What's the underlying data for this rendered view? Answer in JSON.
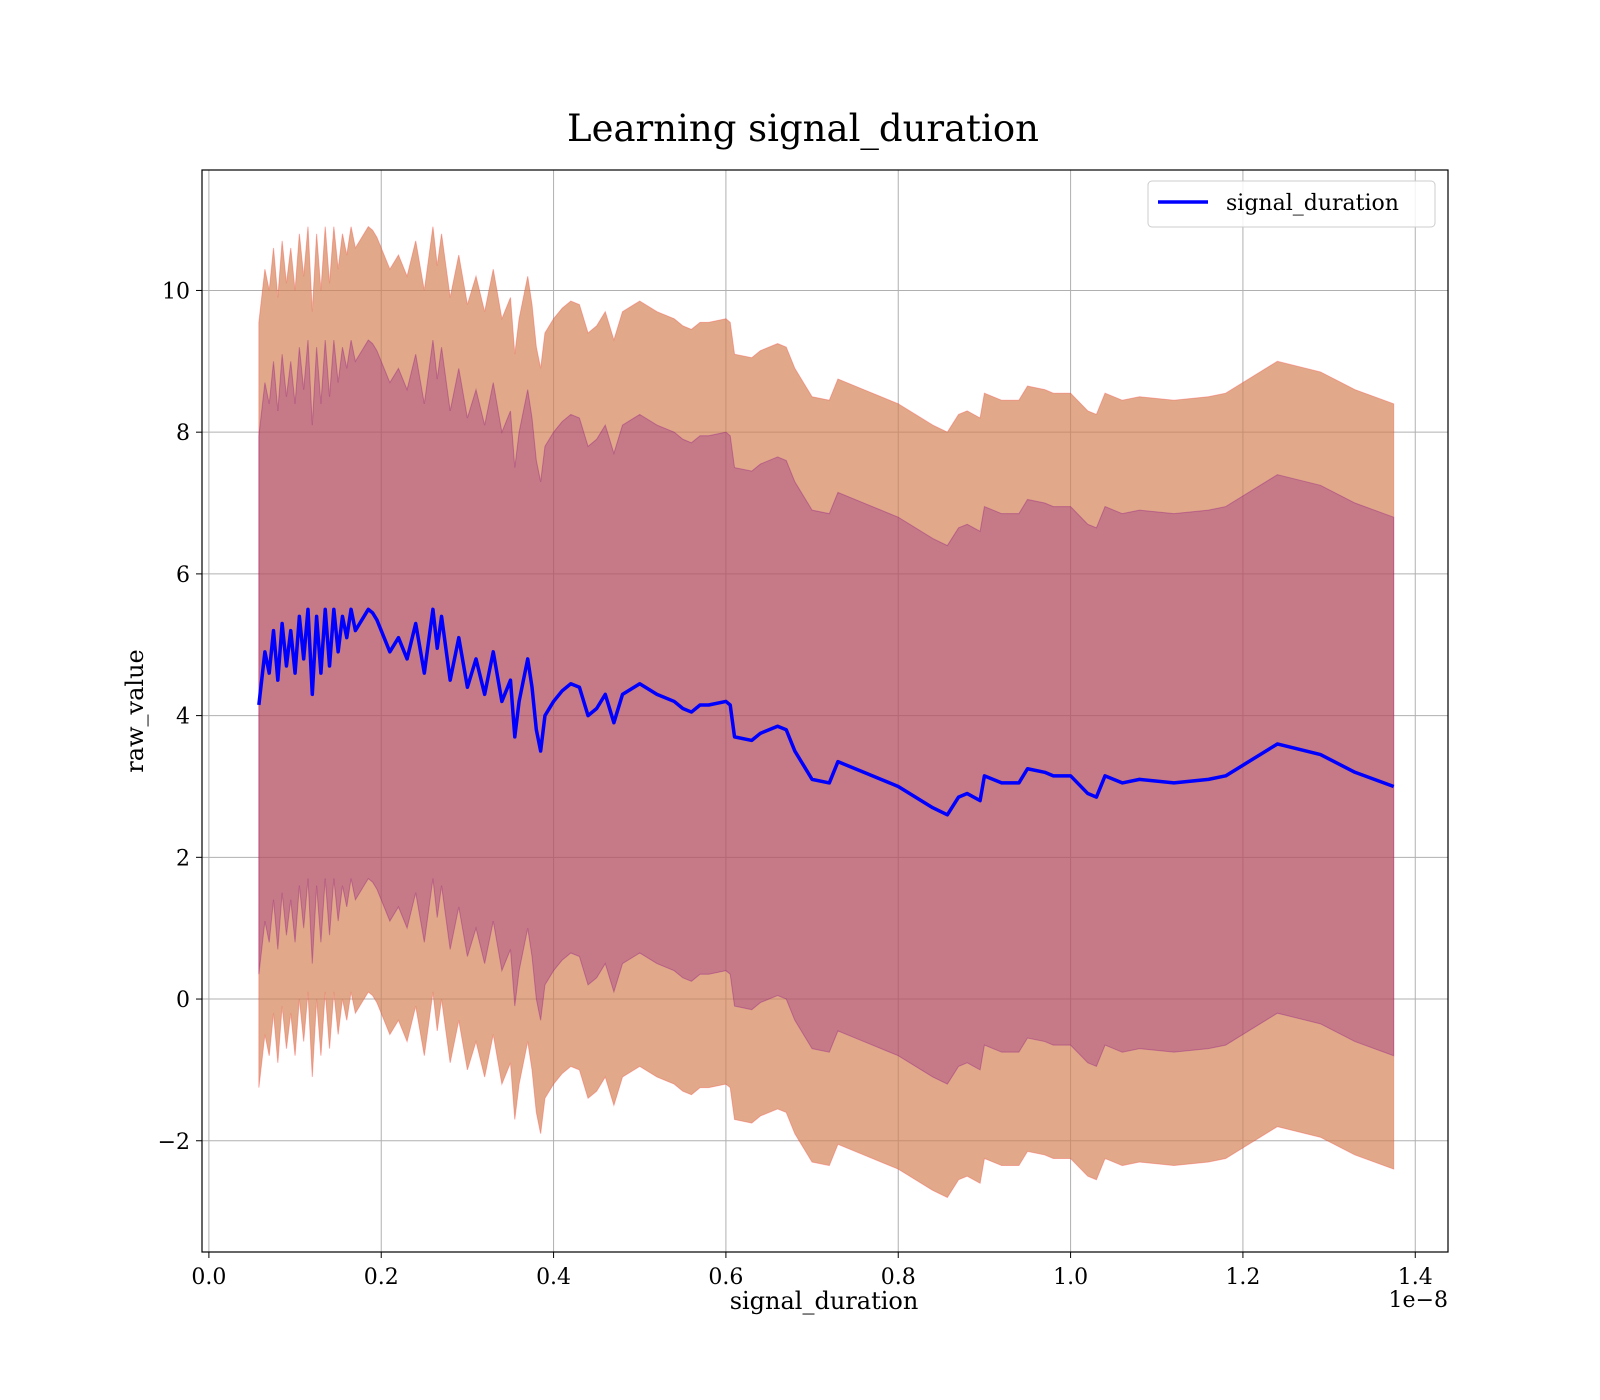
{
  "chart_data": {
    "type": "area",
    "title": "Learning signal_duration",
    "xlabel": "signal_duration",
    "ylabel": "raw_value",
    "x_offset_label": "1e−8",
    "xlim": [
      -0.008,
      1.438
    ],
    "ylim": [
      -3.57,
      11.7
    ],
    "x_ticks": [
      0.0,
      0.2,
      0.4,
      0.6,
      0.8,
      1.0,
      1.2,
      1.4
    ],
    "x_tick_labels": [
      "0.0",
      "0.2",
      "0.4",
      "0.6",
      "0.8",
      "1.0",
      "1.2",
      "1.4"
    ],
    "y_ticks": [
      -2,
      0,
      2,
      4,
      6,
      8,
      10
    ],
    "y_tick_labels": [
      "−2",
      "0",
      "2",
      "4",
      "6",
      "8",
      "10"
    ],
    "grid": true,
    "legend": {
      "position": "top-right"
    },
    "colors": {
      "mean_line": "#0000ff",
      "outer_band": "#ff0000",
      "inner_band": "#800080",
      "grid": "#b0b0b0"
    },
    "series": [
      {
        "name": "signal_duration",
        "x": [
          0.058,
          0.065,
          0.07,
          0.075,
          0.08,
          0.085,
          0.09,
          0.095,
          0.1,
          0.105,
          0.11,
          0.115,
          0.12,
          0.125,
          0.13,
          0.135,
          0.14,
          0.145,
          0.15,
          0.155,
          0.16,
          0.165,
          0.17,
          0.175,
          0.18,
          0.185,
          0.19,
          0.195,
          0.2,
          0.21,
          0.22,
          0.23,
          0.24,
          0.25,
          0.26,
          0.265,
          0.27,
          0.28,
          0.29,
          0.3,
          0.31,
          0.32,
          0.33,
          0.34,
          0.35,
          0.355,
          0.36,
          0.37,
          0.375,
          0.38,
          0.385,
          0.39,
          0.4,
          0.41,
          0.42,
          0.43,
          0.44,
          0.45,
          0.46,
          0.47,
          0.48,
          0.5,
          0.52,
          0.54,
          0.55,
          0.56,
          0.57,
          0.58,
          0.6,
          0.605,
          0.61,
          0.63,
          0.64,
          0.66,
          0.67,
          0.68,
          0.69,
          0.7,
          0.72,
          0.73,
          0.76,
          0.78,
          0.8,
          0.82,
          0.84,
          0.857,
          0.87,
          0.88,
          0.895,
          0.9,
          0.92,
          0.94,
          0.95,
          0.97,
          0.98,
          1.0,
          1.02,
          1.03,
          1.04,
          1.06,
          1.08,
          1.12,
          1.16,
          1.18,
          1.2,
          1.24,
          1.29,
          1.33,
          1.375
        ],
        "values": [
          4.15,
          4.9,
          4.6,
          5.2,
          4.5,
          5.3,
          4.7,
          5.2,
          4.6,
          5.4,
          4.8,
          5.5,
          4.3,
          5.4,
          4.6,
          5.5,
          4.7,
          5.5,
          4.9,
          5.4,
          5.1,
          5.5,
          5.2,
          5.3,
          5.4,
          5.5,
          5.45,
          5.35,
          5.2,
          4.9,
          5.1,
          4.8,
          5.3,
          4.6,
          5.5,
          4.95,
          5.4,
          4.5,
          5.1,
          4.4,
          4.8,
          4.3,
          4.9,
          4.2,
          4.5,
          3.7,
          4.2,
          4.8,
          4.4,
          3.8,
          3.5,
          4.0,
          4.2,
          4.35,
          4.45,
          4.4,
          4.0,
          4.1,
          4.3,
          3.9,
          4.3,
          4.45,
          4.3,
          4.2,
          4.1,
          4.05,
          4.15,
          4.15,
          4.2,
          4.15,
          3.7,
          3.65,
          3.75,
          3.85,
          3.8,
          3.5,
          3.3,
          3.1,
          3.05,
          3.35,
          3.2,
          3.1,
          3.0,
          2.85,
          2.7,
          2.6,
          2.85,
          2.9,
          2.8,
          3.15,
          3.05,
          3.05,
          3.25,
          3.2,
          3.15,
          3.15,
          2.9,
          2.85,
          3.15,
          3.05,
          3.1,
          3.05,
          3.1,
          3.15,
          3.3,
          3.6,
          3.45,
          3.2,
          3.0
        ]
      }
    ],
    "bands": [
      {
        "label": "outer",
        "half_width": 5.4
      },
      {
        "label": "inner",
        "half_width": 3.8
      }
    ]
  }
}
